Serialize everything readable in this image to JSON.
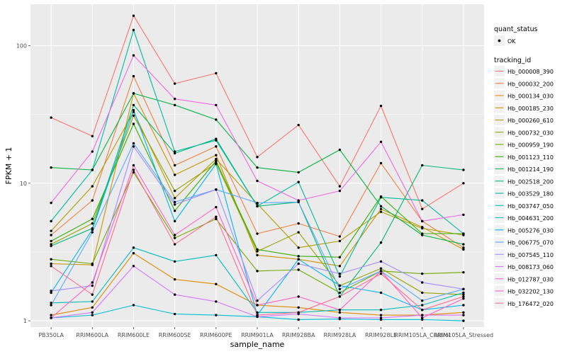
{
  "chart_data": {
    "type": "line",
    "xlabel": "sample_name",
    "ylabel": "FPKM + 1",
    "y_scale": "log",
    "ylim": [
      0.9,
      200
    ],
    "y_ticks": [
      {
        "value": 1,
        "label": "1"
      },
      {
        "value": 10,
        "label": "10"
      },
      {
        "value": 100,
        "label": "100"
      }
    ],
    "categories": [
      "PB350LA",
      "RRIM600LA",
      "RRIM600LE",
      "RRIM600SE",
      "RRIM600PE",
      "RRIM901LA",
      "RRIM928BA",
      "RRIM928LA",
      "RRIM928LE",
      "RRIM105LA_Control",
      "RRIM105LA_Stressed"
    ],
    "grid": true,
    "legend_position": "right",
    "shape_legend": {
      "title": "quant_status",
      "entries": [
        "OK"
      ]
    },
    "color_legend_title": "tracking_id",
    "series": [
      {
        "name": "Hb_000008_390",
        "color": "#F8766D",
        "values": [
          30,
          22,
          165,
          53,
          63,
          15.5,
          26.5,
          9.5,
          36.5,
          6.5,
          10
        ]
      },
      {
        "name": "Hb_000032_200",
        "color": "#EE8042",
        "values": [
          4.2,
          7.5,
          60,
          13.5,
          18.5,
          4.3,
          5.1,
          4.1,
          14,
          5.3,
          3.4
        ]
      },
      {
        "name": "Hb_000134_030",
        "color": "#DF8A00",
        "values": [
          1.1,
          1.25,
          3.1,
          2.0,
          1.85,
          1.3,
          1.25,
          1.15,
          1.1,
          1.1,
          1.15
        ]
      },
      {
        "name": "Hb_000185_230",
        "color": "#CB9300",
        "values": [
          2.6,
          2.55,
          45,
          11.5,
          16,
          3.0,
          2.8,
          2.5,
          6.5,
          4.8,
          3.3
        ]
      },
      {
        "name": "Hb_000260_610",
        "color": "#B39B00",
        "values": [
          4.5,
          9.5,
          33,
          7.8,
          15,
          7.1,
          3.4,
          3.8,
          6.2,
          4.7,
          4.2
        ]
      },
      {
        "name": "Hb_000732_030",
        "color": "#96A200",
        "values": [
          3.6,
          5.1,
          31,
          8.8,
          14,
          3.2,
          4.4,
          1.8,
          2.4,
          1.6,
          1.55
        ]
      },
      {
        "name": "Hb_000959_190",
        "color": "#72A900",
        "values": [
          2.8,
          2.6,
          12,
          4.0,
          5.5,
          2.3,
          2.35,
          1.6,
          2.3,
          2.2,
          2.25
        ]
      },
      {
        "name": "Hb_001123_110",
        "color": "#34AF00",
        "values": [
          3.8,
          5.5,
          27,
          6.3,
          14.5,
          3.3,
          2.95,
          2.9,
          8.0,
          4.3,
          4.3
        ]
      },
      {
        "name": "Hb_001214_190",
        "color": "#00B43F",
        "values": [
          13,
          12.5,
          45,
          37,
          29,
          13,
          12,
          17.5,
          6.8,
          4.2,
          3.6
        ]
      },
      {
        "name": "Hb_002518_200",
        "color": "#00B875",
        "values": [
          3.5,
          4.7,
          37,
          16.5,
          21,
          6.8,
          7.3,
          1.5,
          3.7,
          13.5,
          12.5
        ]
      },
      {
        "name": "Hb_003529_180",
        "color": "#00BB9B",
        "values": [
          5.3,
          12.5,
          130,
          17,
          20.5,
          6.8,
          10.2,
          2.1,
          7.9,
          7.5,
          4.3
        ]
      },
      {
        "name": "Hb_003747_050",
        "color": "#00BDBB",
        "values": [
          1.35,
          1.38,
          3.4,
          2.7,
          3.0,
          1.15,
          1.15,
          1.2,
          1.2,
          1.3,
          1.6
        ]
      },
      {
        "name": "Hb_004631_200",
        "color": "#00BCD6",
        "values": [
          1.05,
          1.1,
          1.3,
          1.12,
          1.1,
          1.07,
          1.02,
          1.03,
          1.02,
          1.02,
          1.0
        ]
      },
      {
        "name": "Hb_005276_030",
        "color": "#00B7EE",
        "values": [
          1.6,
          4.6,
          34,
          5.3,
          13.8,
          1.1,
          2.8,
          1.8,
          1.6,
          1.2,
          1.3
        ]
      },
      {
        "name": "Hb_006775_070",
        "color": "#5AA9FF",
        "values": [
          1.3,
          4.4,
          19.5,
          7.3,
          9,
          7.2,
          7.3,
          1.7,
          2.3,
          1.4,
          1.7
        ]
      },
      {
        "name": "Hb_007545_110",
        "color": "#A58AFF",
        "values": [
          1.65,
          1.8,
          18.5,
          7,
          9,
          1.4,
          2.6,
          2.2,
          2.7,
          1.9,
          1.7
        ]
      },
      {
        "name": "Hb_008173_060",
        "color": "#D773FF",
        "values": [
          1.05,
          1.15,
          2.5,
          1.55,
          1.38,
          1.07,
          1.12,
          1.05,
          1.05,
          1.1,
          1.1
        ]
      },
      {
        "name": "Hb_012787_030",
        "color": "#F265E7",
        "values": [
          7.2,
          17,
          85,
          41,
          37,
          10.4,
          7.5,
          8.8,
          20,
          5.3,
          5.9
        ]
      },
      {
        "name": "Hb_032202_130",
        "color": "#FF61C3",
        "values": [
          1.05,
          1.9,
          13.5,
          4.2,
          6.7,
          1.3,
          1.5,
          1.2,
          2.3,
          1.05,
          1.45
        ]
      },
      {
        "name": "Hb_176472_020",
        "color": "#FF6B95",
        "values": [
          2.5,
          1.55,
          12.5,
          3.6,
          5.7,
          1.1,
          1.15,
          1.5,
          2.2,
          1.2,
          1.5
        ]
      }
    ]
  },
  "colors": {
    "panel_background": "#EBEBEB",
    "grid_line": "#FFFFFF",
    "point": "#000000"
  }
}
